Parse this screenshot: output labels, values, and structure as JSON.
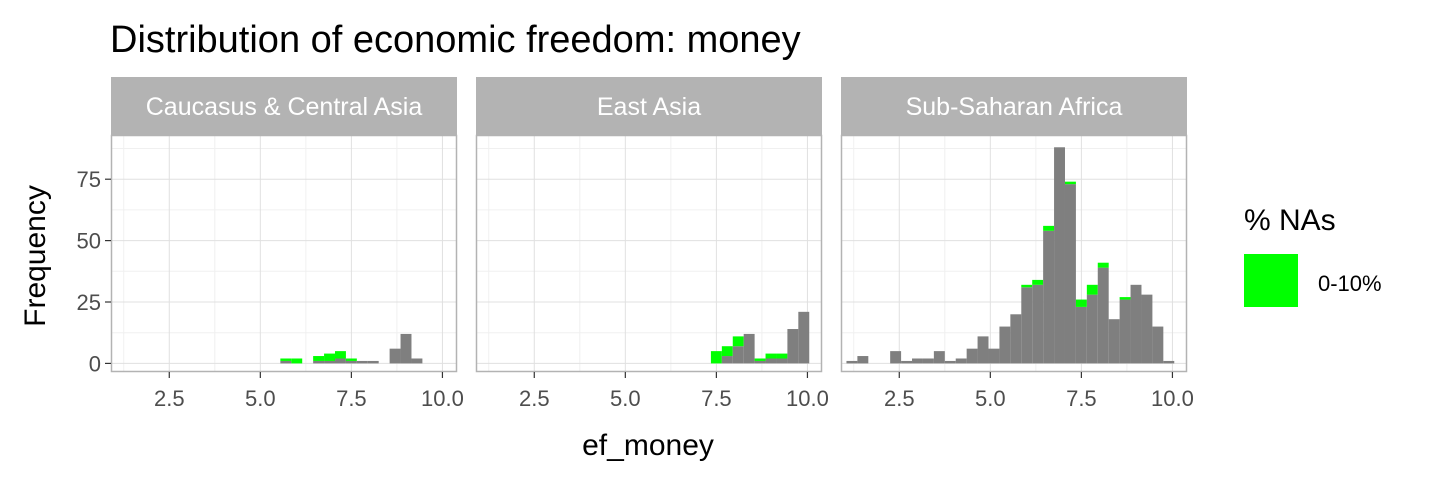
{
  "chart_data": {
    "type": "bar",
    "subtype": "faceted stacked histogram",
    "title": "Distribution of economic freedom: money",
    "xlabel": "ef_money",
    "ylabel": "Frequency",
    "xlim": [
      0.9,
      10.4
    ],
    "ylim": [
      -3.5,
      93
    ],
    "x_ticks": [
      2.5,
      5.0,
      7.5,
      10.0
    ],
    "x_tick_labels": [
      "2.5",
      "5.0",
      "7.5",
      "10.0"
    ],
    "y_ticks": [
      0,
      25,
      50,
      75
    ],
    "y_tick_labels": [
      "0",
      "25",
      "50",
      "75"
    ],
    "bin_width": 0.3,
    "grid": true,
    "legend": {
      "title": "% NAs",
      "position": "right",
      "entries": [
        {
          "label": "0-10%",
          "color": "#00ff00"
        }
      ]
    },
    "colors": {
      "observed": "#7f7f7f",
      "na": "#00ff00",
      "strip_background": "#b3b3b3",
      "panel_border": "#b3b3b3",
      "grid_major": "#e0e0e0",
      "grid_minor": "#f0f0f0"
    },
    "facets": [
      {
        "label": "Caucasus & Central Asia",
        "bins": [
          {
            "x": 5.7,
            "value": 1,
            "na": 1
          },
          {
            "x": 6.0,
            "value": 0,
            "na": 2
          },
          {
            "x": 6.6,
            "value": 1,
            "na": 2
          },
          {
            "x": 6.9,
            "value": 1,
            "na": 3
          },
          {
            "x": 7.2,
            "value": 2,
            "na": 3
          },
          {
            "x": 7.5,
            "value": 1,
            "na": 1
          },
          {
            "x": 7.8,
            "value": 1,
            "na": 0
          },
          {
            "x": 8.1,
            "value": 1,
            "na": 0
          },
          {
            "x": 8.7,
            "value": 6,
            "na": 0
          },
          {
            "x": 9.0,
            "value": 12,
            "na": 0
          },
          {
            "x": 9.3,
            "value": 2,
            "na": 0
          }
        ]
      },
      {
        "label": "East Asia",
        "bins": [
          {
            "x": 7.5,
            "value": 0,
            "na": 5
          },
          {
            "x": 7.8,
            "value": 3,
            "na": 4
          },
          {
            "x": 8.1,
            "value": 7,
            "na": 4
          },
          {
            "x": 8.4,
            "value": 12,
            "na": 0
          },
          {
            "x": 8.7,
            "value": 1,
            "na": 1
          },
          {
            "x": 9.0,
            "value": 2,
            "na": 2
          },
          {
            "x": 9.3,
            "value": 2,
            "na": 2
          },
          {
            "x": 9.6,
            "value": 14,
            "na": 0
          },
          {
            "x": 9.9,
            "value": 21,
            "na": 0
          }
        ]
      },
      {
        "label": "Sub-Saharan Africa",
        "bins": [
          {
            "x": 1.2,
            "value": 1,
            "na": 0
          },
          {
            "x": 1.5,
            "value": 3,
            "na": 0
          },
          {
            "x": 2.4,
            "value": 5,
            "na": 0
          },
          {
            "x": 2.7,
            "value": 1,
            "na": 0
          },
          {
            "x": 3.0,
            "value": 2,
            "na": 0
          },
          {
            "x": 3.3,
            "value": 2,
            "na": 0
          },
          {
            "x": 3.6,
            "value": 5,
            "na": 0
          },
          {
            "x": 3.9,
            "value": 1,
            "na": 0
          },
          {
            "x": 4.2,
            "value": 2,
            "na": 0
          },
          {
            "x": 4.5,
            "value": 6,
            "na": 0
          },
          {
            "x": 4.8,
            "value": 11,
            "na": 0
          },
          {
            "x": 5.1,
            "value": 6,
            "na": 0
          },
          {
            "x": 5.4,
            "value": 15,
            "na": 0
          },
          {
            "x": 5.7,
            "value": 20,
            "na": 0
          },
          {
            "x": 6.0,
            "value": 31,
            "na": 1
          },
          {
            "x": 6.3,
            "value": 32,
            "na": 2
          },
          {
            "x": 6.6,
            "value": 54,
            "na": 2
          },
          {
            "x": 6.9,
            "value": 88,
            "na": 0
          },
          {
            "x": 7.2,
            "value": 73,
            "na": 1
          },
          {
            "x": 7.5,
            "value": 23,
            "na": 3
          },
          {
            "x": 7.8,
            "value": 28,
            "na": 4
          },
          {
            "x": 8.1,
            "value": 39,
            "na": 2
          },
          {
            "x": 8.4,
            "value": 18,
            "na": 0
          },
          {
            "x": 8.7,
            "value": 26,
            "na": 1
          },
          {
            "x": 9.0,
            "value": 32,
            "na": 0
          },
          {
            "x": 9.3,
            "value": 28,
            "na": 0
          },
          {
            "x": 9.6,
            "value": 15,
            "na": 0
          },
          {
            "x": 9.9,
            "value": 1,
            "na": 0
          }
        ]
      }
    ]
  }
}
